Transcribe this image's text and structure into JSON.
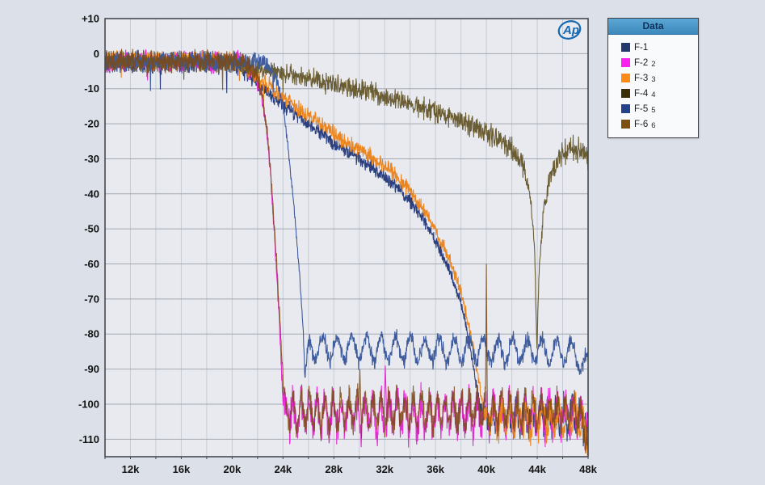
{
  "panel": {
    "page_bg": "#dce1e9",
    "plot_bg": "#e8eaef",
    "grid_h_color": "#a2a9b3",
    "grid_v_color": "#c6ccd6",
    "border_color": "#45494f",
    "tick_label_color": "#141414",
    "logo_color": "#1668b0"
  },
  "chart_data": {
    "type": "line",
    "title": "",
    "xlabel": "",
    "ylabel": "",
    "x_unit": "Hz",
    "y_unit": "dB",
    "xlim": [
      10000,
      48000
    ],
    "ylim": [
      -115,
      10
    ],
    "grid": true,
    "x_minor_step_hz": 2000,
    "y_major_step_db": 10,
    "watermark": "Ap",
    "x_ticks": [
      {
        "value": 12000,
        "label": "12k"
      },
      {
        "value": 16000,
        "label": "16k"
      },
      {
        "value": 20000,
        "label": "20k"
      },
      {
        "value": 24000,
        "label": "24k"
      },
      {
        "value": 28000,
        "label": "28k"
      },
      {
        "value": 32000,
        "label": "32k"
      },
      {
        "value": 36000,
        "label": "36k"
      },
      {
        "value": 40000,
        "label": "40k"
      },
      {
        "value": 44000,
        "label": "44k"
      },
      {
        "value": 48000,
        "label": "48k"
      }
    ],
    "y_ticks": [
      {
        "value": 10,
        "label": "+10"
      },
      {
        "value": 0,
        "label": "0"
      },
      {
        "value": -10,
        "label": "-10"
      },
      {
        "value": -20,
        "label": "-20"
      },
      {
        "value": -30,
        "label": "-30"
      },
      {
        "value": -40,
        "label": "-40"
      },
      {
        "value": -50,
        "label": "-50"
      },
      {
        "value": -60,
        "label": "-60"
      },
      {
        "value": -70,
        "label": "-70"
      },
      {
        "value": -80,
        "label": "-80"
      },
      {
        "value": -90,
        "label": "-90"
      },
      {
        "value": -100,
        "label": "-100"
      },
      {
        "value": -110,
        "label": "-110"
      }
    ],
    "legend": {
      "title": "Data",
      "position": "top-right",
      "entries": [
        {
          "name": "F-1",
          "sub": "",
          "color": "#233a6d"
        },
        {
          "name": "F-2",
          "sub": "2",
          "color": "#fb22f0"
        },
        {
          "name": "F-3",
          "sub": "3",
          "color": "#fd8a16"
        },
        {
          "name": "F-4",
          "sub": "4",
          "color": "#3a2f08"
        },
        {
          "name": "F-5",
          "sub": "5",
          "color": "#24428a"
        },
        {
          "name": "F-6",
          "sub": "6",
          "color": "#7c4e10"
        }
      ]
    },
    "series": [
      {
        "name": "F-1",
        "stroke": "#2b3f7e",
        "opacity": 1,
        "seed": 11,
        "description": "slow roll-off tracking F-3, reaches noise floor ~-104 dB at 39.5 kHz",
        "anchors": [
          [
            10,
            -2.5,
            2.8
          ],
          [
            20,
            -2.8,
            2.8
          ],
          [
            21,
            -5,
            2.5
          ],
          [
            22,
            -8.5,
            2.2
          ],
          [
            23,
            -11.5,
            2.2
          ],
          [
            24,
            -14.5,
            2.2
          ],
          [
            26,
            -20,
            2.2
          ],
          [
            28,
            -25.5,
            2.2
          ],
          [
            30,
            -30,
            2.2
          ],
          [
            32,
            -35,
            2.2
          ],
          [
            34,
            -42,
            2
          ],
          [
            35,
            -47,
            2
          ],
          [
            36,
            -53.5,
            1.8
          ],
          [
            37,
            -61,
            1.8
          ],
          [
            38,
            -71,
            1.5
          ],
          [
            38.6,
            -81,
            1.5
          ],
          [
            39.1,
            -92,
            1.5
          ],
          [
            39.5,
            -101,
            3
          ],
          [
            40,
            -104,
            4.5
          ],
          [
            47.5,
            -104,
            4.5
          ],
          [
            48,
            -108,
            4
          ]
        ],
        "ripple": [
          {
            "from": 39.8,
            "to": 48,
            "amp": 3,
            "period": 0.62,
            "phase": 0.5
          }
        ],
        "spikes": []
      },
      {
        "name": "F-2",
        "stroke": "#e52cd2",
        "opacity": 1,
        "seed": 22,
        "description": "brickwall cutoff ~22.5-24 kHz, noise floor ~-103 dB with periodic spikes",
        "anchors": [
          [
            10,
            -2,
            3
          ],
          [
            20.5,
            -2.2,
            3
          ],
          [
            21.3,
            -3.5,
            2.8
          ],
          [
            21.8,
            -6,
            2.5
          ],
          [
            22.2,
            -10,
            2.3
          ],
          [
            22.6,
            -18,
            2.2
          ],
          [
            23,
            -34,
            2
          ],
          [
            23.4,
            -56,
            2
          ],
          [
            23.7,
            -76,
            2
          ],
          [
            23.95,
            -95,
            2.5
          ],
          [
            24.1,
            -103,
            5
          ],
          [
            47.3,
            -103,
            5
          ],
          [
            48,
            -107,
            5
          ]
        ],
        "ripple": [
          {
            "from": 24,
            "to": 48,
            "amp": 4,
            "period": 0.63,
            "phase": 0
          }
        ],
        "spikes": [
          {
            "x": 32.05,
            "db": -89,
            "w": 0.1
          }
        ]
      },
      {
        "name": "F-3",
        "stroke": "#ec8620",
        "opacity": 1,
        "seed": 33,
        "description": "slow roll-off arc reaching noise floor ~-104 dB near 40 kHz, dips to -112 at 48 kHz",
        "anchors": [
          [
            10,
            -2,
            2.6
          ],
          [
            20,
            -2.2,
            2.6
          ],
          [
            21,
            -4,
            2.5
          ],
          [
            22,
            -6.5,
            2.5
          ],
          [
            23,
            -9.5,
            2.5
          ],
          [
            24,
            -12.5,
            2.5
          ],
          [
            26,
            -17.5,
            2.5
          ],
          [
            28,
            -23,
            2.5
          ],
          [
            30,
            -27.5,
            2.5
          ],
          [
            32,
            -32,
            2.5
          ],
          [
            34,
            -39,
            2.2
          ],
          [
            35,
            -44,
            2.2
          ],
          [
            36,
            -50,
            2
          ],
          [
            37,
            -58,
            2
          ],
          [
            38,
            -68,
            1.8
          ],
          [
            38.7,
            -79,
            1.8
          ],
          [
            39.3,
            -91,
            1.8
          ],
          [
            39.7,
            -101,
            3
          ],
          [
            40.2,
            -104,
            4.5
          ],
          [
            47.4,
            -104,
            4.5
          ],
          [
            47.9,
            -110,
            3
          ],
          [
            48,
            -112,
            3
          ]
        ],
        "ripple": [
          {
            "from": 40,
            "to": 48,
            "amp": 3.5,
            "period": 0.64,
            "phase": 2.1
          }
        ],
        "spikes": []
      },
      {
        "name": "F-4",
        "stroke": "#6b5d33",
        "opacity": 1,
        "seed": 44,
        "description": "gentle attenuation to ~-22 dB at 40 kHz with deep notch to ~-85 dB at 44 kHz, recovering to ~-28 dB",
        "anchors": [
          [
            10,
            -2.2,
            2.8
          ],
          [
            20,
            -2.8,
            2.8
          ],
          [
            22,
            -4.2,
            2.8
          ],
          [
            24,
            -5.5,
            2.8
          ],
          [
            26,
            -7,
            2.8
          ],
          [
            28,
            -8.5,
            2.8
          ],
          [
            30,
            -10.2,
            3
          ],
          [
            32,
            -12.2,
            3
          ],
          [
            34,
            -14.2,
            3
          ],
          [
            36,
            -16.8,
            3.2
          ],
          [
            38,
            -19.5,
            3.2
          ],
          [
            40,
            -22.5,
            3.5
          ],
          [
            41,
            -24.5,
            3.5
          ],
          [
            42,
            -27,
            3.2
          ],
          [
            43,
            -33,
            2.8
          ],
          [
            43.5,
            -42,
            2.4
          ],
          [
            43.8,
            -56,
            2
          ],
          [
            43.97,
            -85,
            1.5
          ],
          [
            44.15,
            -62,
            2
          ],
          [
            44.5,
            -45,
            2.4
          ],
          [
            45,
            -35,
            3
          ],
          [
            45.8,
            -29.5,
            3.4
          ],
          [
            46.6,
            -27,
            3.8
          ],
          [
            47.3,
            -27.5,
            4
          ],
          [
            48,
            -30,
            4
          ]
        ],
        "ripple": [],
        "spikes": []
      },
      {
        "name": "F-5",
        "stroke": "#3d5b9d",
        "opacity": 1,
        "seed": 55,
        "description": "steep cutoff 23.5-25.7 kHz, rippled floor ~-85 dB out to 48 kHz",
        "anchors": [
          [
            10,
            -2,
            3
          ],
          [
            22.5,
            -2.5,
            2.8
          ],
          [
            23,
            -4,
            2.2
          ],
          [
            23.5,
            -7.5,
            1.8
          ],
          [
            24,
            -15,
            1.6
          ],
          [
            24.4,
            -27,
            1.5
          ],
          [
            24.8,
            -41,
            1.5
          ],
          [
            25.1,
            -54,
            1.5
          ],
          [
            25.4,
            -68,
            1.5
          ],
          [
            25.6,
            -80,
            1.5
          ],
          [
            25.72,
            -92,
            1.2
          ],
          [
            25.85,
            -88,
            2
          ],
          [
            26.1,
            -84,
            2.4
          ],
          [
            47,
            -85,
            2.4
          ],
          [
            47.6,
            -90,
            2.2
          ],
          [
            48,
            -89,
            2.2
          ]
        ],
        "ripple": [
          {
            "from": 25.9,
            "to": 48,
            "amp": 3.4,
            "period": 1.15,
            "phase": 1.2
          }
        ],
        "spikes": []
      },
      {
        "name": "F-6",
        "stroke": "#7b4a14",
        "opacity": 0.85,
        "seed": 66,
        "description": "brickwall cutoff ~22.7-24.2 kHz, noise floor ~-102 dB, spur up to -60 dB at 40 kHz",
        "anchors": [
          [
            10,
            -2,
            3
          ],
          [
            20.5,
            -2.2,
            3
          ],
          [
            21.4,
            -3.8,
            2.8
          ],
          [
            21.9,
            -6.5,
            2.5
          ],
          [
            22.3,
            -11,
            2.3
          ],
          [
            22.7,
            -20,
            2.2
          ],
          [
            23.1,
            -37,
            2
          ],
          [
            23.5,
            -59,
            2
          ],
          [
            23.8,
            -79,
            2
          ],
          [
            24.05,
            -97,
            2.5
          ],
          [
            24.2,
            -102,
            4.2
          ],
          [
            47.3,
            -102,
            4.2
          ],
          [
            47.9,
            -108,
            4
          ],
          [
            48,
            -111,
            3
          ]
        ],
        "ripple": [
          {
            "from": 24.1,
            "to": 48,
            "amp": 3.8,
            "period": 0.63,
            "phase": 0.9
          }
        ],
        "spikes": [
          {
            "x": 40.0,
            "db": -60,
            "w": 0.07
          },
          {
            "x": 30.05,
            "db": -90,
            "w": 0.08
          }
        ]
      }
    ]
  }
}
